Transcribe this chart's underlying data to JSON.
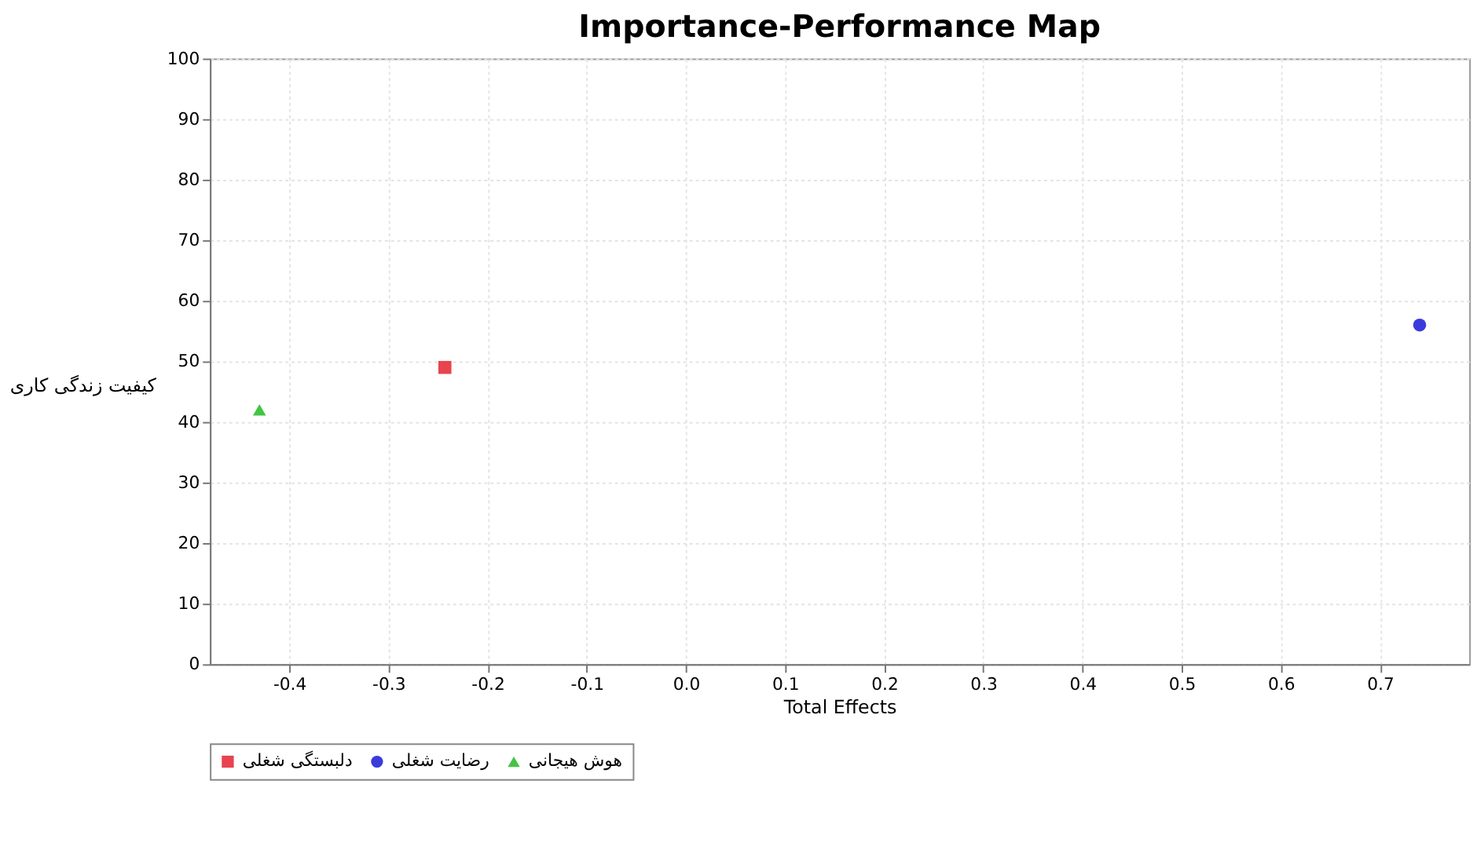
{
  "chart_data": {
    "type": "scatter",
    "title": "Importance-Performance Map",
    "xlabel": "Total Effects",
    "ylabel": "کیفیت زندگی کاری",
    "xlim": [
      -0.48,
      0.79
    ],
    "xticks": [
      {
        "value": -0.4,
        "label": "-0.4"
      },
      {
        "value": -0.3,
        "label": "-0.3"
      },
      {
        "value": -0.2,
        "label": "-0.2"
      },
      {
        "value": -0.1,
        "label": "-0.1"
      },
      {
        "value": 0,
        "label": "0.0"
      },
      {
        "value": 0.1,
        "label": "0.1"
      },
      {
        "value": 0.2,
        "label": "0.2"
      },
      {
        "value": 0.3,
        "label": "0.3"
      },
      {
        "value": 0.4,
        "label": "0.4"
      },
      {
        "value": 0.5,
        "label": "0.5"
      },
      {
        "value": 0.6,
        "label": "0.6"
      },
      {
        "value": 0.7,
        "label": "0.7"
      }
    ],
    "ylim": [
      0,
      100
    ],
    "yticks": [
      0,
      10,
      20,
      30,
      40,
      50,
      60,
      70,
      80,
      90,
      100
    ],
    "grid": true,
    "legend": "bottom",
    "series": [
      {
        "name": "دلبستگی شغلی",
        "color": "#e8434f",
        "marker": "square",
        "x": [
          -0.243
        ],
        "values": [
          49
        ]
      },
      {
        "name": "رضایت شغلی",
        "color": "#3b3bdc",
        "marker": "circle",
        "x": [
          0.74
        ],
        "values": [
          56
        ]
      },
      {
        "name": "هوش هیجانی",
        "color": "#44c444",
        "marker": "triangle",
        "x": [
          -0.43
        ],
        "values": [
          42
        ]
      }
    ]
  }
}
